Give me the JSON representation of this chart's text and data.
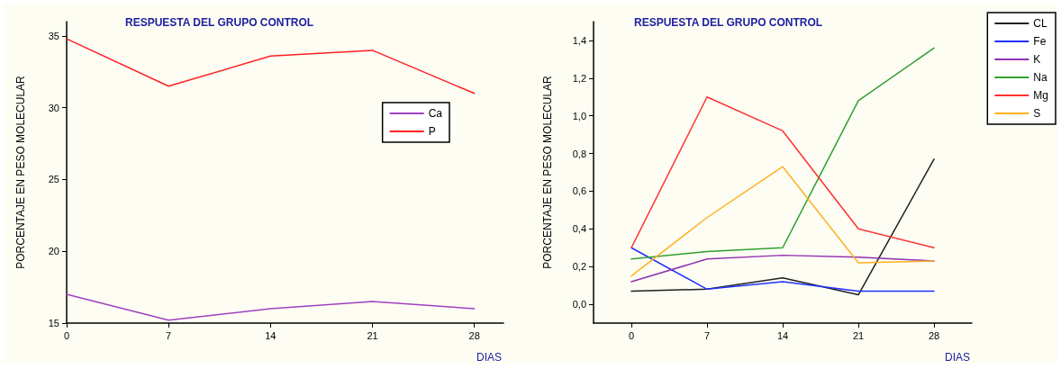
{
  "chart_data": [
    {
      "type": "line",
      "title": "RESPUESTA DEL GRUPO CONTROL",
      "xlabel": "DIAS",
      "ylabel": "PORCENTAJE EN PESO MOLECULAR",
      "x": [
        0,
        7,
        14,
        21,
        28
      ],
      "xlim": [
        0,
        30
      ],
      "xticks": [
        0,
        7,
        14,
        21,
        28
      ],
      "ylim": [
        15,
        36
      ],
      "yticks": [
        15,
        20,
        25,
        30,
        35
      ],
      "legend": "top right",
      "grid": false,
      "marker": "none",
      "series": [
        {
          "name": "Ca",
          "color": "#a040c0",
          "values": [
            17.0,
            15.2,
            16.0,
            16.5,
            16.0
          ]
        },
        {
          "name": "P",
          "color": "#ff2020",
          "values": [
            34.8,
            31.5,
            33.6,
            34.0,
            31.0
          ]
        }
      ]
    },
    {
      "type": "line",
      "title": "RESPUESTA DEL GRUPO CONTROL",
      "xlabel": "DIAS",
      "ylabel": "PORCENTAJE EN PESO MOLECULAR",
      "x": [
        0,
        7,
        14,
        21,
        28
      ],
      "xlim": [
        -3.5,
        31.5
      ],
      "xticks": [
        0,
        7,
        14,
        21,
        28
      ],
      "ylim": [
        -0.1,
        1.5
      ],
      "yticks": [
        {
          "value": 0,
          "label": "0,0"
        },
        {
          "value": 0.2,
          "label": "0,2"
        },
        {
          "value": 0.4,
          "label": "0,4"
        },
        {
          "value": 0.6,
          "label": "0,6"
        },
        {
          "value": 0.8,
          "label": "0,8"
        },
        {
          "value": 1,
          "label": "1,0"
        },
        {
          "value": 1.2,
          "label": "1,2"
        },
        {
          "value": 1.4,
          "label": "1,4"
        }
      ],
      "legend": "top right",
      "grid": false,
      "marker": "none",
      "series": [
        {
          "name": "CL",
          "color": "#202020",
          "values": [
            0.07,
            0.08,
            0.14,
            0.05,
            0.77
          ]
        },
        {
          "name": "Fe",
          "color": "#2030ff",
          "values": [
            0.3,
            0.08,
            0.12,
            0.07,
            0.07
          ]
        },
        {
          "name": "K",
          "color": "#9030b0",
          "values": [
            0.12,
            0.24,
            0.26,
            0.25,
            0.23
          ]
        },
        {
          "name": "Na",
          "color": "#30a030",
          "values": [
            0.24,
            0.28,
            0.3,
            1.08,
            1.36
          ]
        },
        {
          "name": "Mg",
          "color": "#ff3030",
          "values": [
            0.3,
            1.1,
            0.92,
            0.4,
            0.3
          ]
        },
        {
          "name": "S",
          "color": "#ffb020",
          "values": [
            0.15,
            0.46,
            0.73,
            0.22,
            0.23
          ]
        }
      ]
    }
  ]
}
